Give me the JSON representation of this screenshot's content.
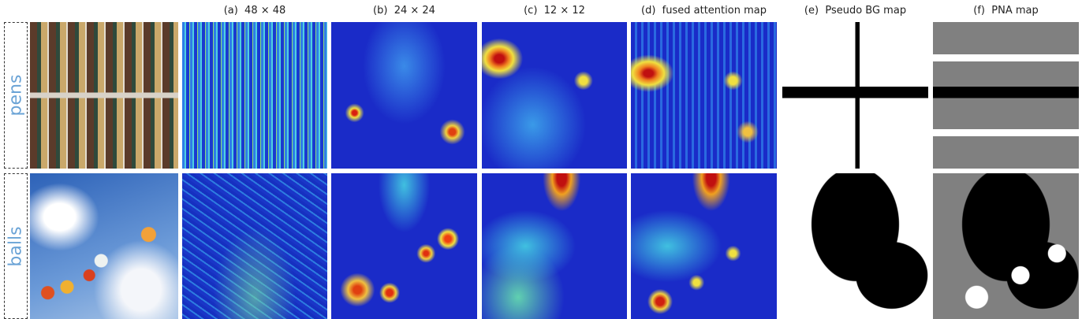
{
  "columns": [
    "(a)  48 × 48",
    "(b)  24 × 24",
    "(c)  12 × 12",
    "(d)  fused attention map",
    "(e)  Pseudo BG map",
    "(f)  PNA map"
  ],
  "rows": [
    "pens",
    "balls"
  ]
}
